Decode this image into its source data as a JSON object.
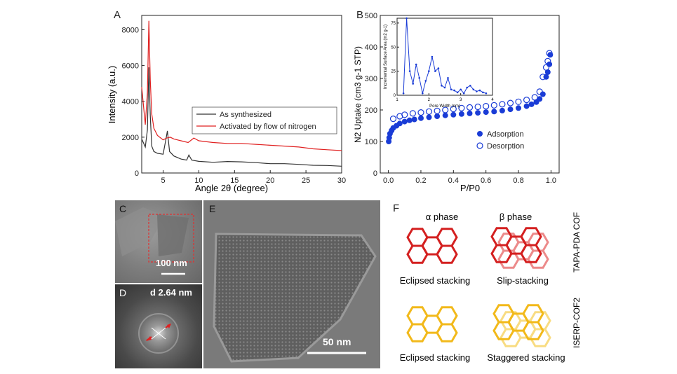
{
  "panels": {
    "A": {
      "label": "A"
    },
    "B": {
      "label": "B"
    },
    "C": {
      "label": "C",
      "scale_bar": "100 nm"
    },
    "D": {
      "label": "D",
      "d_spacing": "d 2.64 nm"
    },
    "E": {
      "label": "E",
      "scale_bar": "50 nm"
    },
    "F": {
      "label": "F",
      "alpha_phase": "α phase",
      "beta_phase": "β phase",
      "row1_name": "TAPA-PDA COF",
      "row2_name": "ISERP-COF2",
      "eclipsed_1": "Eclipsed stacking",
      "slip": "Slip-stacking",
      "eclipsed_2": "Eclipsed stacking",
      "staggered": "Staggered stacking",
      "colors": {
        "red": "#d42020",
        "red_light": "#ec8a8a",
        "yellow": "#f2b91a",
        "yellow_light": "#f8dc82"
      }
    }
  },
  "chart_data": [
    {
      "type": "line",
      "panel": "A",
      "xlabel": "Angle 2θ (degree)",
      "ylabel": "Intensity (a.u.)",
      "xlim": [
        2,
        30
      ],
      "ylim": [
        0,
        8800
      ],
      "x_ticks": [
        5,
        10,
        15,
        20,
        25,
        30
      ],
      "y_ticks": [
        0,
        2000,
        4000,
        6000,
        8000
      ],
      "legend_position": "center-right",
      "series": [
        {
          "name": "As synthesized",
          "color": "#333333",
          "x": [
            2,
            2.5,
            2.8,
            3.0,
            3.2,
            3.4,
            3.7,
            4.2,
            5.0,
            5.4,
            5.6,
            5.9,
            6.5,
            7.5,
            8.3,
            8.6,
            9,
            10,
            12,
            14,
            16,
            18,
            20,
            22,
            24,
            26,
            28,
            30
          ],
          "y": [
            1900,
            1450,
            2400,
            5900,
            3200,
            1500,
            1200,
            1100,
            1050,
            1900,
            2350,
            1200,
            950,
            780,
            720,
            1000,
            720,
            650,
            600,
            640,
            620,
            580,
            520,
            520,
            480,
            430,
            420,
            380
          ]
        },
        {
          "name": "Activated by flow of nitrogen",
          "color": "#e02020",
          "x": [
            2,
            2.5,
            2.8,
            3.0,
            3.2,
            3.4,
            3.7,
            4.2,
            5.0,
            5.5,
            6.0,
            6.5,
            7.5,
            8.5,
            9.3,
            10,
            12,
            14,
            16,
            18,
            20,
            22,
            24,
            26,
            28,
            30
          ],
          "y": [
            4800,
            2700,
            4500,
            8500,
            5200,
            3300,
            2500,
            2100,
            1850,
            1950,
            2000,
            1900,
            1800,
            1700,
            1950,
            1800,
            1700,
            1650,
            1650,
            1600,
            1550,
            1500,
            1450,
            1350,
            1300,
            1250
          ]
        }
      ]
    },
    {
      "type": "scatter",
      "panel": "B",
      "xlabel": "P/P0",
      "ylabel": "N2 Uptake (cm3 g-1 STP)",
      "xlim": [
        -0.05,
        1.05
      ],
      "ylim": [
        0,
        500
      ],
      "x_ticks": [
        0.0,
        0.2,
        0.4,
        0.6,
        0.8,
        1.0
      ],
      "y_ticks": [
        0,
        100,
        200,
        300,
        400,
        500
      ],
      "legend_position": "bottom-right",
      "series": [
        {
          "name": "Adsorption",
          "marker": "filled",
          "color": "#1a3cd6",
          "x": [
            0.002,
            0.005,
            0.01,
            0.02,
            0.03,
            0.05,
            0.07,
            0.1,
            0.13,
            0.16,
            0.2,
            0.25,
            0.3,
            0.35,
            0.4,
            0.45,
            0.5,
            0.55,
            0.6,
            0.65,
            0.7,
            0.75,
            0.8,
            0.85,
            0.88,
            0.91,
            0.93,
            0.95,
            0.97,
            0.98,
            0.99,
            0.995
          ],
          "y": [
            100,
            112,
            125,
            135,
            143,
            150,
            157,
            163,
            167,
            170,
            174,
            177,
            180,
            183,
            185,
            187,
            189,
            191,
            193,
            195,
            198,
            202,
            206,
            212,
            218,
            225,
            235,
            250,
            305,
            320,
            345,
            375
          ]
        },
        {
          "name": "Desorption",
          "marker": "open",
          "color": "#1a3cd6",
          "x": [
            0.03,
            0.07,
            0.1,
            0.15,
            0.2,
            0.25,
            0.3,
            0.35,
            0.4,
            0.45,
            0.5,
            0.55,
            0.6,
            0.65,
            0.7,
            0.75,
            0.8,
            0.85,
            0.9,
            0.93,
            0.95,
            0.97,
            0.98,
            0.99
          ],
          "y": [
            172,
            180,
            185,
            189,
            192,
            195,
            197,
            200,
            203,
            206,
            208,
            210,
            212,
            215,
            218,
            222,
            226,
            232,
            240,
            258,
            305,
            335,
            355,
            380
          ]
        }
      ],
      "inset": {
        "type": "line",
        "xlabel": "Pore Width (nm)",
        "ylabel": "Incremental Surface Area (m2 g-1)",
        "xlim": [
          1,
          4
        ],
        "ylim": [
          0,
          80
        ],
        "x_ticks": [
          1,
          2,
          3,
          4
        ],
        "y_ticks": [
          0,
          25,
          50,
          75
        ],
        "series": [
          {
            "name": "",
            "color": "#1a3cd6",
            "x": [
              1.2,
              1.3,
              1.4,
              1.5,
              1.6,
              1.7,
              1.8,
              1.9,
              2.0,
              2.1,
              2.2,
              2.3,
              2.4,
              2.5,
              2.6,
              2.7,
              2.8,
              2.9,
              3.0,
              3.1,
              3.2,
              3.3,
              3.4,
              3.5,
              3.6,
              3.7,
              3.8
            ],
            "y": [
              2,
              80,
              25,
              12,
              32,
              18,
              2,
              15,
              25,
              40,
              25,
              28,
              10,
              8,
              18,
              6,
              5,
              3,
              6,
              2,
              8,
              10,
              6,
              4,
              5,
              3,
              2
            ]
          }
        ]
      }
    }
  ]
}
